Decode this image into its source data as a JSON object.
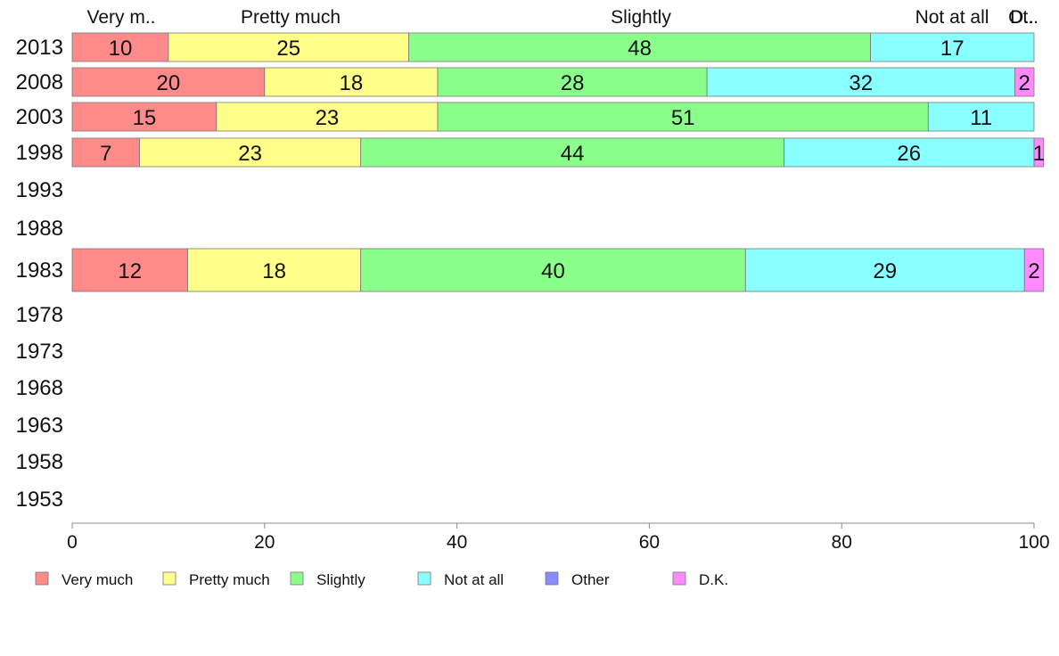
{
  "chart_data": {
    "type": "bar",
    "orientation": "horizontal",
    "stacked": true,
    "xlim": [
      0,
      100
    ],
    "x_ticks": [
      "0",
      "20",
      "40",
      "60",
      "80",
      "100"
    ],
    "grid": false,
    "legend_position": "bottom",
    "categories": [
      "2013",
      "2008",
      "2003",
      "1998",
      "1993",
      "1988",
      "1983",
      "1978",
      "1973",
      "1968",
      "1963",
      "1958",
      "1953"
    ],
    "top_labels": [
      "Very m..",
      "Pretty much",
      "Slightly",
      "Not at all",
      "Ot..",
      "D.."
    ],
    "series": [
      {
        "name": "Very much",
        "color": "#ff8a8a",
        "values": [
          10,
          20,
          15,
          7,
          null,
          null,
          12,
          null,
          null,
          null,
          null,
          null,
          null
        ]
      },
      {
        "name": "Pretty much",
        "color": "#ffff8a",
        "values": [
          25,
          18,
          23,
          23,
          null,
          null,
          18,
          null,
          null,
          null,
          null,
          null,
          null
        ]
      },
      {
        "name": "Slightly",
        "color": "#8aff8a",
        "values": [
          48,
          28,
          51,
          44,
          null,
          null,
          40,
          null,
          null,
          null,
          null,
          null,
          null
        ]
      },
      {
        "name": "Not at all",
        "color": "#8affff",
        "values": [
          17,
          32,
          11,
          26,
          null,
          null,
          29,
          null,
          null,
          null,
          null,
          null,
          null
        ]
      },
      {
        "name": "Other",
        "color": "#8a8aff",
        "values": [
          0,
          0,
          0,
          0,
          null,
          null,
          0,
          null,
          null,
          null,
          null,
          null,
          null
        ]
      },
      {
        "name": "D.K.",
        "color": "#ff8aff",
        "values": [
          0,
          2,
          0,
          1,
          null,
          null,
          2,
          null,
          null,
          null,
          null,
          null,
          null
        ]
      }
    ]
  }
}
